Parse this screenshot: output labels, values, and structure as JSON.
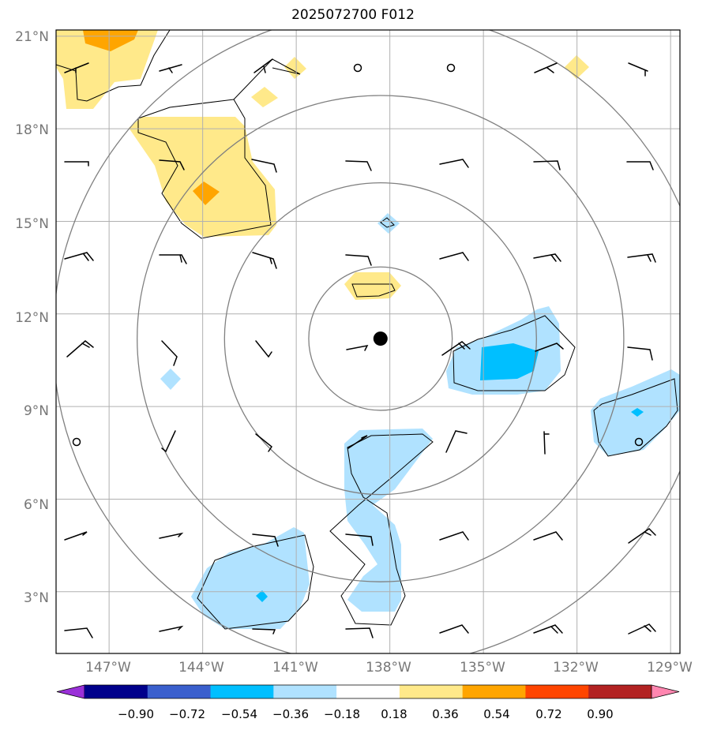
{
  "title": "2025072700 F012",
  "lat_labels": [
    "21°N",
    "18°N",
    "15°N",
    "12°N",
    "9°N",
    "6°N",
    "3°N"
  ],
  "lon_labels": [
    "147°W",
    "144°W",
    "141°W",
    "138°W",
    "135°W",
    "132°W",
    "129°W"
  ],
  "colorbar": {
    "ticks": [
      "−0.90",
      "−0.72",
      "−0.54",
      "−0.36",
      "−0.18",
      "0.18",
      "0.36",
      "0.54",
      "0.72",
      "0.90"
    ],
    "colors": [
      "#9a30d8",
      "#00008b",
      "#3a5fcd",
      "#00bfff",
      "#b0e2ff",
      "#ffffff",
      "#ffe98a",
      "#ffa500",
      "#ff4500",
      "#b22222",
      "#ff86b0"
    ]
  },
  "map": {
    "lon_range": [
      -148.7,
      -128.7
    ],
    "lat_range": [
      1.0,
      21.2
    ],
    "storm_center": {
      "lon": -138.3,
      "lat": 11.2
    },
    "range_rings_deg": [
      2.3,
      5.0,
      7.8,
      10.5
    ],
    "gridlines": true
  }
}
